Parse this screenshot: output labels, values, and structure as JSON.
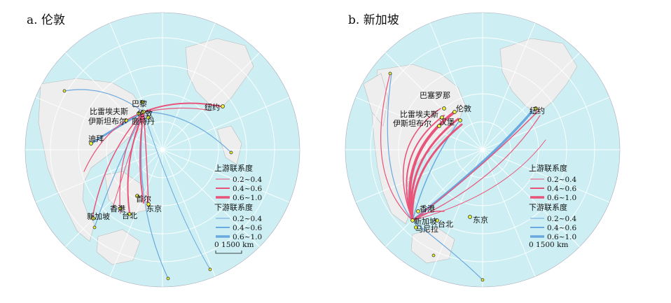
{
  "maps": [
    {
      "title": "a. 伦敦",
      "legend": {
        "up_title": "上游联系度",
        "up_items": [
          "0.2~0.4",
          "0.4~0.6",
          "0.6~1.0"
        ],
        "down_title": "下游联系度",
        "down_items": [
          "0.2~0.4",
          "0.4~0.6",
          "0.6~1.0"
        ],
        "scale": "0   1500 km"
      },
      "cities": [
        "巴黎",
        "比雷埃夫斯",
        "伦敦",
        "伊斯坦布尔",
        "鹿特丹",
        "纽约",
        "迪拜",
        "香港",
        "首尔",
        "东京",
        "新加坡",
        "台北"
      ]
    },
    {
      "title": "b. 新加坡",
      "legend": {
        "up_title": "上游联系度",
        "up_items": [
          "0.2~0.4",
          "0.4~0.6",
          "0.6~1.0"
        ],
        "down_title": "下游联系度",
        "down_items": [
          "0.2~0.4",
          "0.4~0.6",
          "0.6~1.0"
        ],
        "scale": "0   1500 km"
      },
      "cities": [
        "巴塞罗那",
        "比雷埃夫斯",
        "伦敦",
        "伊斯坦布尔",
        "汉堡",
        "纽约",
        "香港",
        "新加坡",
        "马尼拉",
        "台北",
        "东京"
      ]
    }
  ],
  "colors": {
    "ocean": "#cdeff3",
    "land": "#eeeeee",
    "grid": "#ffffff",
    "upstream": "#e8547a",
    "downstream": "#6aa8e0",
    "city": "#e8f23a"
  }
}
